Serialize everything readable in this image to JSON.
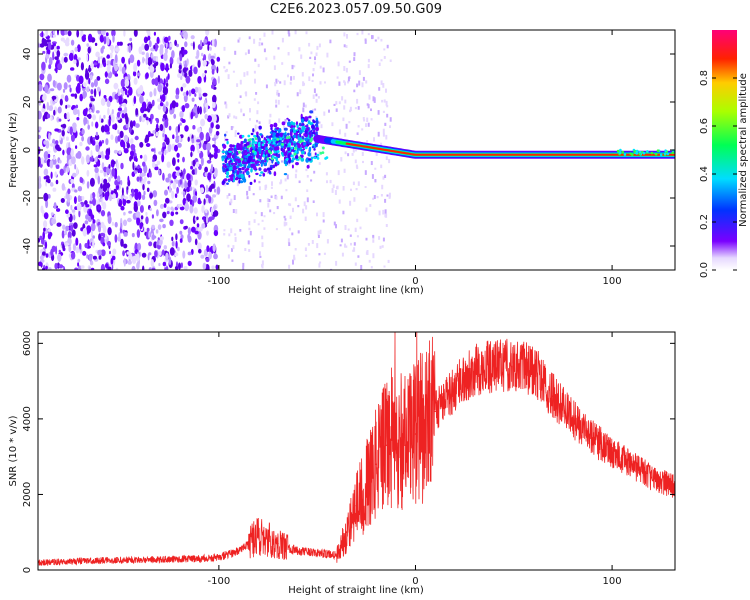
{
  "title": "C2E6.2023.057.09.50.G09",
  "colors": {
    "accent": "#ff0000",
    "snr_line": "#ee2222",
    "spectral_dot": "#6a00ff"
  },
  "chart_data": [
    {
      "type": "heatmap",
      "name": "spectrogram",
      "xlabel": "Height of straight line (km)",
      "ylabel": "Frequency (Hz)",
      "xlim": [
        -192,
        132
      ],
      "ylim": [
        -50,
        50
      ],
      "x_ticks": [
        -100,
        0,
        100
      ],
      "x_tick_labels": [
        "-100",
        "0",
        "100"
      ],
      "y_ticks": [
        -40,
        -20,
        0,
        20,
        40
      ],
      "y_tick_labels": [
        "-40",
        "-20",
        "0",
        "20",
        "40"
      ],
      "colorbar": {
        "label": "Normalized spectral amplitude",
        "range": [
          0,
          1
        ],
        "ticks": [
          0.0,
          0.2,
          0.4,
          0.6,
          0.8
        ],
        "tick_labels": [
          "0.0",
          "0.2",
          "0.4",
          "0.6",
          "0.8"
        ],
        "colormap": "rainbow"
      },
      "features": [
        {
          "description": "scattered noise",
          "x_range": [
            -192,
            -100
          ],
          "freq_range": [
            -50,
            50
          ],
          "amplitude": 0.15
        },
        {
          "description": "cluster",
          "x_range": [
            -98,
            -50
          ],
          "freq_range": [
            -15,
            10
          ],
          "amplitude": 0.3
        },
        {
          "description": "signal line",
          "x_range": [
            -45,
            132
          ],
          "freq_start": 4,
          "freq_end": -2,
          "amplitude": 0.9
        }
      ]
    },
    {
      "type": "line",
      "name": "snr",
      "xlabel": "Height of straight line (km)",
      "ylabel": "SNR (10 * v/v)",
      "xlim": [
        -192,
        132
      ],
      "ylim": [
        0,
        6300
      ],
      "x_ticks": [
        -100,
        0,
        100
      ],
      "x_tick_labels": [
        "-100",
        "0",
        "100"
      ],
      "y_ticks": [
        0,
        2000,
        4000,
        6000
      ],
      "y_tick_labels": [
        "0",
        "2000",
        "4000",
        "6000"
      ],
      "x": [
        -192,
        -160,
        -130,
        -110,
        -100,
        -90,
        -80,
        -70,
        -60,
        -50,
        -40,
        -35,
        -30,
        -25,
        -20,
        -15,
        -10,
        -5,
        0,
        5,
        10,
        15,
        20,
        25,
        30,
        40,
        50,
        60,
        70,
        80,
        90,
        100,
        110,
        120,
        132
      ],
      "y": [
        200,
        250,
        280,
        300,
        330,
        500,
        900,
        700,
        500,
        450,
        400,
        1000,
        1700,
        2200,
        2800,
        3300,
        3700,
        3300,
        3600,
        3900,
        4200,
        4500,
        4800,
        5100,
        5300,
        5400,
        5450,
        5300,
        4600,
        4000,
        3500,
        3100,
        2800,
        2450,
        2200
      ]
    }
  ]
}
